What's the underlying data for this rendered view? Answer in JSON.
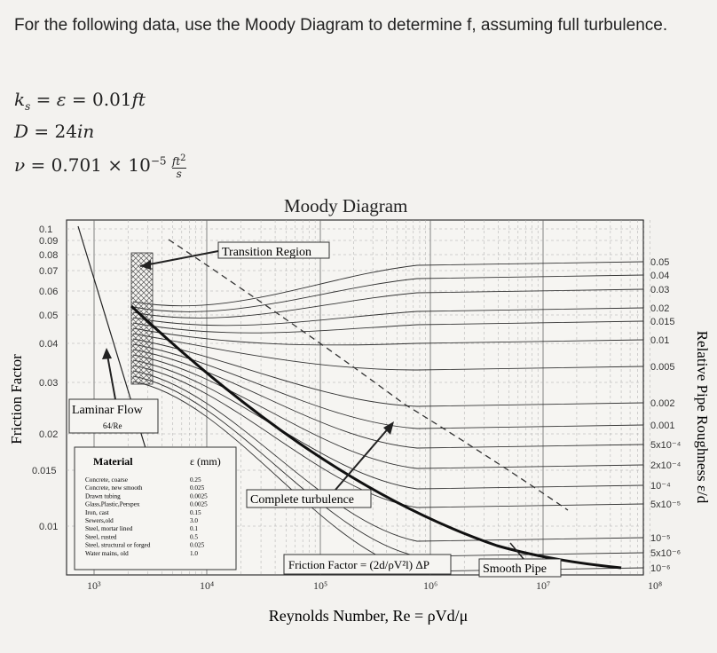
{
  "question": {
    "text": "For the following data, use the Moody Diagram to determine f, assuming full turbulence.",
    "ks_line": "k_s = ε = 0.01 ft",
    "d_line": "D = 24in",
    "nu_line": "ν = 0.701 × 10^-5 ft²/s"
  },
  "diagram": {
    "title": "Moody Diagram",
    "y_axis_label": "Friction Factor",
    "x_axis_label": "Reynolds Number, Re = ρVd/μ",
    "right_axis_label": "Relative Pipe Roughness ε/d",
    "y_ticks": [
      "0.1",
      "0.09",
      "0.08",
      "0.07",
      "0.06",
      "0.05",
      "0.04",
      "0.03",
      "0.02",
      "0.015",
      "0.01"
    ],
    "x_ticks": [
      "10³",
      "10⁴",
      "10⁵",
      "10⁶",
      "10⁷",
      "10⁸"
    ],
    "roughness_labels": [
      "0.05",
      "0.04",
      "0.03",
      "0.02",
      "0.015",
      "0.01",
      "0.005",
      "0.002",
      "0.001",
      "5x10⁻⁴",
      "2x10⁻⁴",
      "10⁻⁴",
      "5x10⁻⁵",
      "10⁻⁵",
      "5x10⁻⁶",
      "10⁻⁶"
    ],
    "annotations": {
      "transition": "Transition Region",
      "laminar": "Laminar Flow",
      "laminar_formula": "64/Re",
      "complete": "Complete turbulence",
      "friction_formula": "Friction Factor = (2d/ρV²l) ΔP",
      "smooth": "Smooth Pipe"
    },
    "material_table": {
      "header_material": "Material",
      "header_eps": "ε (mm)",
      "rows": [
        [
          "Concrete, coarse",
          "0.25"
        ],
        [
          "Concrete, new smooth",
          "0.025"
        ],
        [
          "Drawn tubing",
          "0.0025"
        ],
        [
          "Glass,Plastic,Perspex",
          "0.0025"
        ],
        [
          "Iron, cast",
          "0.15"
        ],
        [
          "Sewers,old",
          "3.0"
        ],
        [
          "Steel, mortar lined",
          "0.1"
        ],
        [
          "Steel, rusted",
          "0.5"
        ],
        [
          "Steel, structural or forged",
          "0.025"
        ],
        [
          "Water mains, old",
          "1.0"
        ]
      ]
    }
  }
}
